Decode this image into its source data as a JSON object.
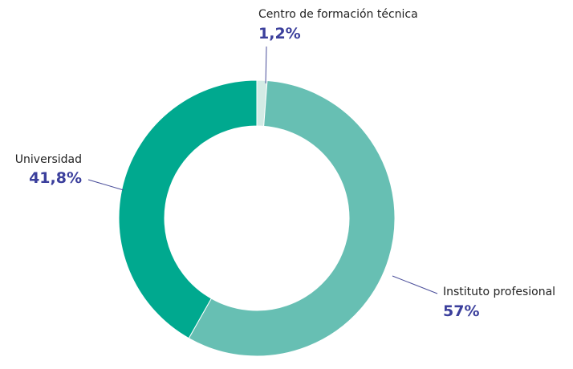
{
  "chart_data": {
    "type": "pie",
    "categories": [
      "Centro de formación técnica",
      "Instituto profesional",
      "Universidad"
    ],
    "values": [
      1.2,
      57,
      41.8
    ],
    "value_labels": [
      "1,2%",
      "57%",
      "41,8%"
    ],
    "colors": [
      "#d3ebe5",
      "#67bfb3",
      "#00a98f"
    ]
  }
}
